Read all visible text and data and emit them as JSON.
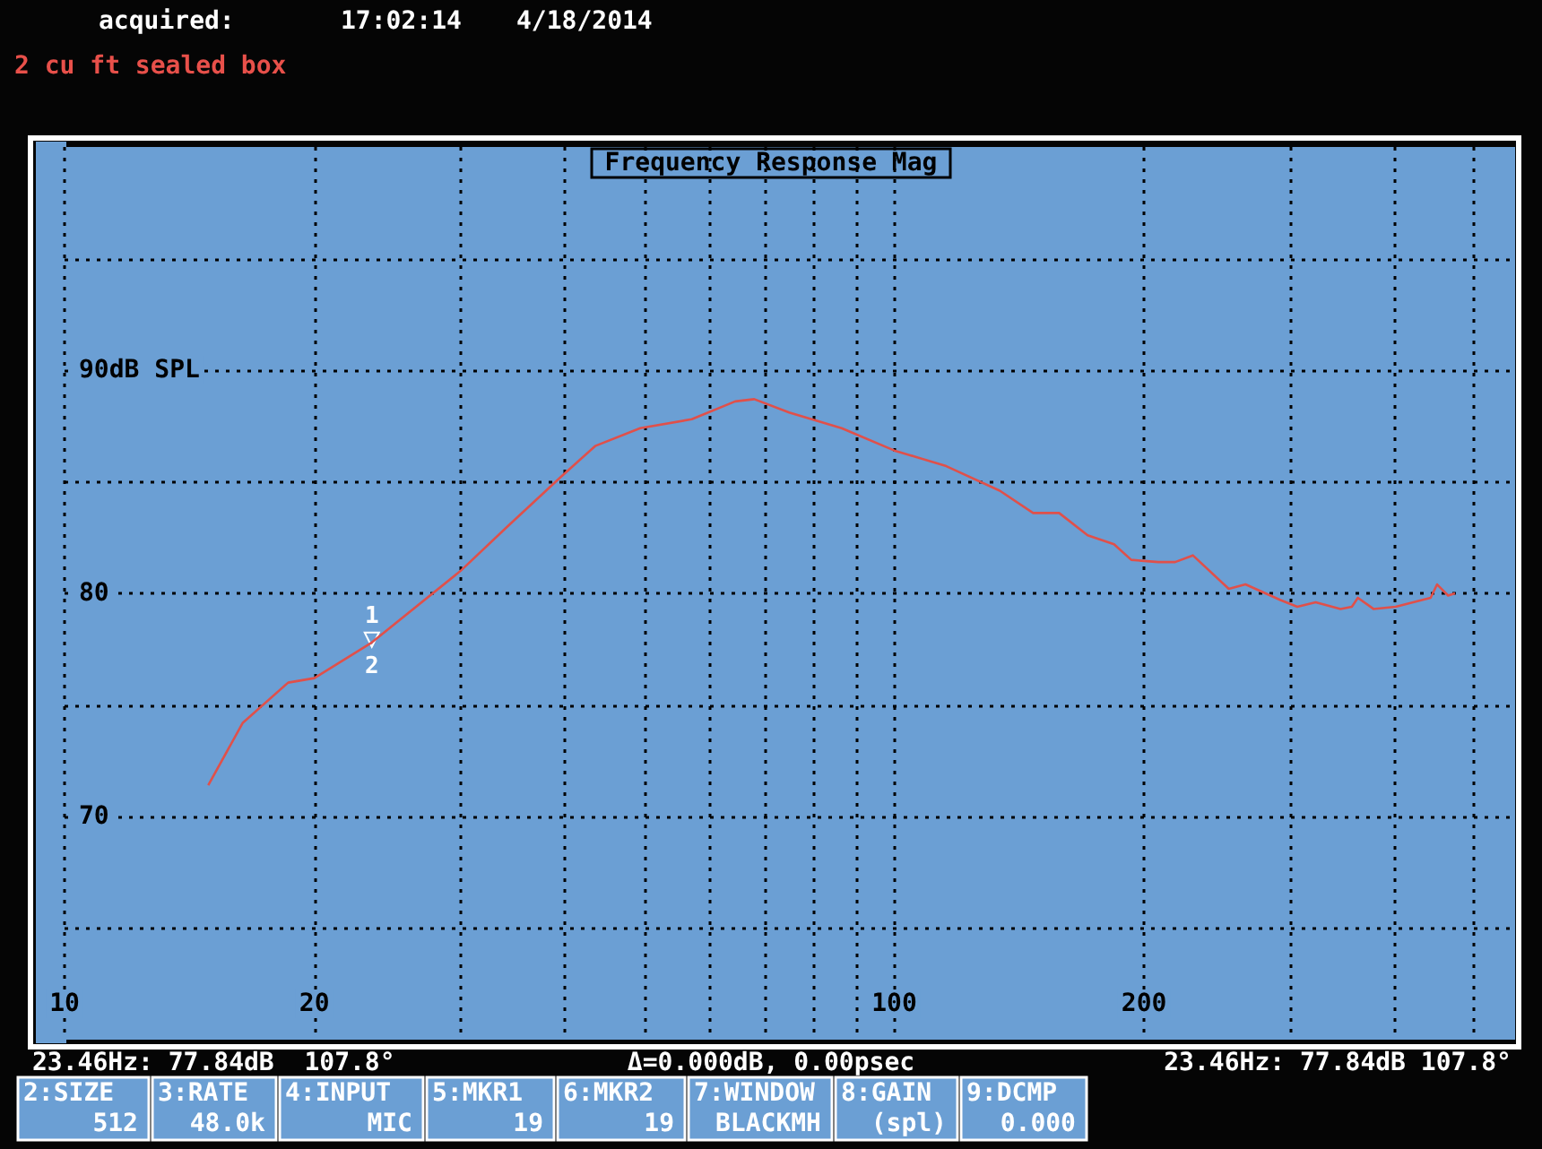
{
  "chart_data": {
    "type": "line",
    "title": "Frequency Response Mag",
    "subtitle": "2 cu ft sealed box",
    "annotations": [
      "acquired:",
      "17:02:14",
      "4/18/2014",
      "23.46Hz: 77.84dB  107.8°",
      "Δ=0.000dB, 0.00psec",
      "23.46Hz: 77.84dB 107.8°",
      "2:SIZE",
      "512",
      "3:RATE",
      "48.0k",
      "4:INPUT",
      "MIC",
      "5:MKR1",
      "19",
      "6:MKR2",
      "19",
      "7:WINDOW",
      "BLACKMH",
      "8:GAIN",
      "(spl)",
      "9:DCMP",
      "0.000",
      {
        "text": "1",
        "x": 23.46,
        "y": 77.84
      },
      {
        "text": "2",
        "x": 23.46,
        "y": 77.84
      }
    ],
    "series": [
      {
        "color": "#e0504a",
        "x": [
          14.9,
          16.4,
          18.6,
          20,
          23.46,
          30,
          34.2,
          39.6,
          43.6,
          49.4,
          57,
          64.3,
          67.8,
          74.7,
          86.4,
          100,
          115.5,
          134,
          147,
          158,
          171,
          184,
          193,
          208,
          218,
          229,
          253,
          265,
          292,
          306,
          322,
          345,
          356,
          362,
          378,
          402,
          443,
          451,
          465,
          474
        ],
        "values": [
          71.4,
          74.2,
          76.0,
          76.2,
          77.8,
          81.0,
          83.0,
          85.2,
          86.6,
          87.4,
          87.8,
          88.6,
          88.7,
          88.1,
          87.4,
          86.4,
          85.7,
          84.6,
          83.6,
          83.6,
          82.6,
          82.2,
          81.5,
          81.4,
          81.4,
          81.7,
          80.2,
          80.4,
          79.7,
          79.4,
          79.6,
          79.3,
          79.4,
          79.8,
          79.3,
          79.4,
          79.8,
          80.4,
          79.9,
          80.0
        ]
      }
    ],
    "log": "x",
    "xlim": [
      10,
      560
    ],
    "xticks": [
      10,
      20,
      {
        "value": 30,
        "label": null
      },
      {
        "value": 40,
        "label": null
      },
      {
        "value": 50,
        "label": null
      },
      {
        "value": 60,
        "label": null
      },
      {
        "value": 70,
        "label": null
      },
      {
        "value": 80,
        "label": null
      },
      {
        "value": 90,
        "label": null
      },
      100,
      200,
      {
        "value": 300,
        "label": null
      },
      {
        "value": 400,
        "label": null
      },
      {
        "value": 500,
        "label": null
      }
    ],
    "ylim": [
      60,
      100
    ],
    "yticks": [
      {
        "value": 65,
        "label": null
      },
      70,
      {
        "value": 75,
        "label": null
      },
      80,
      {
        "value": 85,
        "label": null
      },
      {
        "value": 90,
        "label": "90dB SPL"
      },
      {
        "value": 95,
        "label": null
      }
    ],
    "grid": true,
    "line_style": "solid",
    "marker": "none"
  }
}
